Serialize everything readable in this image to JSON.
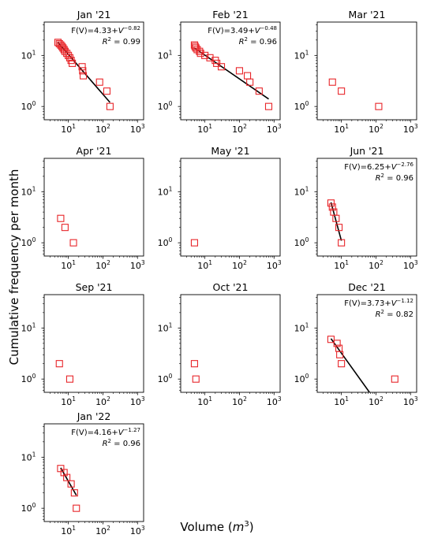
{
  "figure": {
    "ylabel": "Cumulative frequency per month",
    "xlabel_prefix": "Volume (",
    "xlabel_unit": "m",
    "xlabel_exp": "3",
    "xlabel_suffix": ")"
  },
  "chart_data": [
    {
      "type": "scatter",
      "title": "Jan '21",
      "xscale": "log",
      "yscale": "log",
      "xlim": [
        2,
        1500
      ],
      "ylim": [
        0.55,
        45
      ],
      "marker": "open-square",
      "marker_color": "#e8262a",
      "points": [
        [
          5,
          18
        ],
        [
          5.5,
          17
        ],
        [
          6,
          16
        ],
        [
          6.5,
          15
        ],
        [
          7,
          14
        ],
        [
          7.5,
          13
        ],
        [
          8,
          12
        ],
        [
          9,
          11
        ],
        [
          10,
          10
        ],
        [
          11,
          9
        ],
        [
          12,
          8
        ],
        [
          13,
          7
        ],
        [
          25,
          6
        ],
        [
          26,
          5
        ],
        [
          27,
          4
        ],
        [
          80,
          3
        ],
        [
          130,
          2
        ],
        [
          160,
          1
        ]
      ],
      "fit": {
        "x": [
          5,
          160
        ],
        "y": [
          18,
          1.2
        ]
      },
      "equation": {
        "pre": "F(V)=4.33+",
        "var": "V",
        "exp": "−0.82"
      },
      "r2": {
        "label": "R",
        "exp": "2",
        "value": " = 0.99"
      }
    },
    {
      "type": "scatter",
      "title": "Feb '21",
      "xscale": "log",
      "yscale": "log",
      "xlim": [
        2,
        1500
      ],
      "ylim": [
        0.55,
        45
      ],
      "marker": "open-square",
      "marker_color": "#e8262a",
      "points": [
        [
          5,
          16
        ],
        [
          5.2,
          15
        ],
        [
          5.5,
          14
        ],
        [
          6,
          13
        ],
        [
          7,
          12
        ],
        [
          7.5,
          11
        ],
        [
          10,
          10
        ],
        [
          14,
          9
        ],
        [
          20,
          8
        ],
        [
          22,
          7
        ],
        [
          30,
          6
        ],
        [
          100,
          5
        ],
        [
          170,
          4
        ],
        [
          200,
          3
        ],
        [
          370,
          2
        ],
        [
          700,
          1
        ]
      ],
      "fit": {
        "x": [
          5,
          700
        ],
        "y": [
          14,
          1.4
        ]
      },
      "equation": {
        "pre": "F(V)=3.49+",
        "var": "V",
        "exp": "−0.48"
      },
      "r2": {
        "label": "R",
        "exp": "2",
        "value": " = 0.96"
      }
    },
    {
      "type": "scatter",
      "title": "Mar '21",
      "xscale": "log",
      "yscale": "log",
      "xlim": [
        2,
        1500
      ],
      "ylim": [
        0.55,
        45
      ],
      "marker": "open-square",
      "marker_color": "#e8262a",
      "points": [
        [
          5.5,
          3
        ],
        [
          10,
          2
        ],
        [
          120,
          1
        ]
      ]
    },
    {
      "type": "scatter",
      "title": "Apr '21",
      "xscale": "log",
      "yscale": "log",
      "xlim": [
        2,
        1500
      ],
      "ylim": [
        0.55,
        45
      ],
      "marker": "open-square",
      "marker_color": "#e8262a",
      "points": [
        [
          6,
          3
        ],
        [
          8,
          2
        ],
        [
          14,
          1
        ]
      ]
    },
    {
      "type": "scatter",
      "title": "May '21",
      "xscale": "log",
      "yscale": "log",
      "xlim": [
        2,
        1500
      ],
      "ylim": [
        0.55,
        45
      ],
      "marker": "open-square",
      "marker_color": "#e8262a",
      "points": [
        [
          5,
          1
        ]
      ]
    },
    {
      "type": "scatter",
      "title": "Jun '21",
      "xscale": "log",
      "yscale": "log",
      "xlim": [
        2,
        1500
      ],
      "ylim": [
        0.55,
        45
      ],
      "marker": "open-square",
      "marker_color": "#e8262a",
      "points": [
        [
          5,
          6
        ],
        [
          5.5,
          5
        ],
        [
          6,
          4
        ],
        [
          7,
          3
        ],
        [
          8.5,
          2
        ],
        [
          10,
          1
        ]
      ],
      "fit": {
        "x": [
          5,
          10
        ],
        "y": [
          6.2,
          1.1
        ]
      },
      "equation": {
        "pre": "F(V)=6.25+",
        "var": "V",
        "exp": "−2.76"
      },
      "r2": {
        "label": "R",
        "exp": "2",
        "value": " = 0.96"
      }
    },
    {
      "type": "scatter",
      "title": "Sep '21",
      "xscale": "log",
      "yscale": "log",
      "xlim": [
        2,
        1500
      ],
      "ylim": [
        0.55,
        45
      ],
      "marker": "open-square",
      "marker_color": "#e8262a",
      "points": [
        [
          5.5,
          2
        ],
        [
          11,
          1
        ]
      ]
    },
    {
      "type": "scatter",
      "title": "Oct '21",
      "xscale": "log",
      "yscale": "log",
      "xlim": [
        2,
        1500
      ],
      "ylim": [
        0.55,
        45
      ],
      "marker": "open-square",
      "marker_color": "#e8262a",
      "points": [
        [
          5,
          2
        ],
        [
          5.5,
          1
        ]
      ]
    },
    {
      "type": "scatter",
      "title": "Dec '21",
      "xscale": "log",
      "yscale": "log",
      "xlim": [
        2,
        1500
      ],
      "ylim": [
        0.55,
        45
      ],
      "marker": "open-square",
      "marker_color": "#e8262a",
      "points": [
        [
          5,
          6
        ],
        [
          7.5,
          5
        ],
        [
          8.5,
          4
        ],
        [
          9,
          3
        ],
        [
          10,
          2
        ],
        [
          350,
          1
        ]
      ],
      "fit": {
        "x": [
          5,
          65
        ],
        "y": [
          6.2,
          0.55
        ]
      },
      "equation": {
        "pre": "F(V)=3.73+",
        "var": "V",
        "exp": "−1.12"
      },
      "r2": {
        "label": "R",
        "exp": "2",
        "value": " = 0.82"
      }
    },
    {
      "type": "scatter",
      "title": "Jan '22",
      "xscale": "log",
      "yscale": "log",
      "xlim": [
        2,
        1500
      ],
      "ylim": [
        0.55,
        45
      ],
      "marker": "open-square",
      "marker_color": "#e8262a",
      "points": [
        [
          6,
          6
        ],
        [
          7.5,
          5
        ],
        [
          9,
          4
        ],
        [
          12,
          3
        ],
        [
          15,
          2
        ],
        [
          17,
          1
        ]
      ],
      "fit": {
        "x": [
          6,
          17
        ],
        "y": [
          6.2,
          1.8
        ]
      },
      "equation": {
        "pre": "F(V)=4.16+",
        "var": "V",
        "exp": "−1.27"
      },
      "r2": {
        "label": "R",
        "exp": "2",
        "value": " = 0.96"
      }
    }
  ],
  "axes_ticks": {
    "x": [
      {
        "value": 10,
        "base": "10",
        "exp": "1"
      },
      {
        "value": 100,
        "base": "10",
        "exp": "2"
      },
      {
        "value": 1000,
        "base": "10",
        "exp": "3"
      }
    ],
    "y": [
      {
        "value": 1,
        "base": "10",
        "exp": "0"
      },
      {
        "value": 10,
        "base": "10",
        "exp": "1"
      }
    ]
  }
}
